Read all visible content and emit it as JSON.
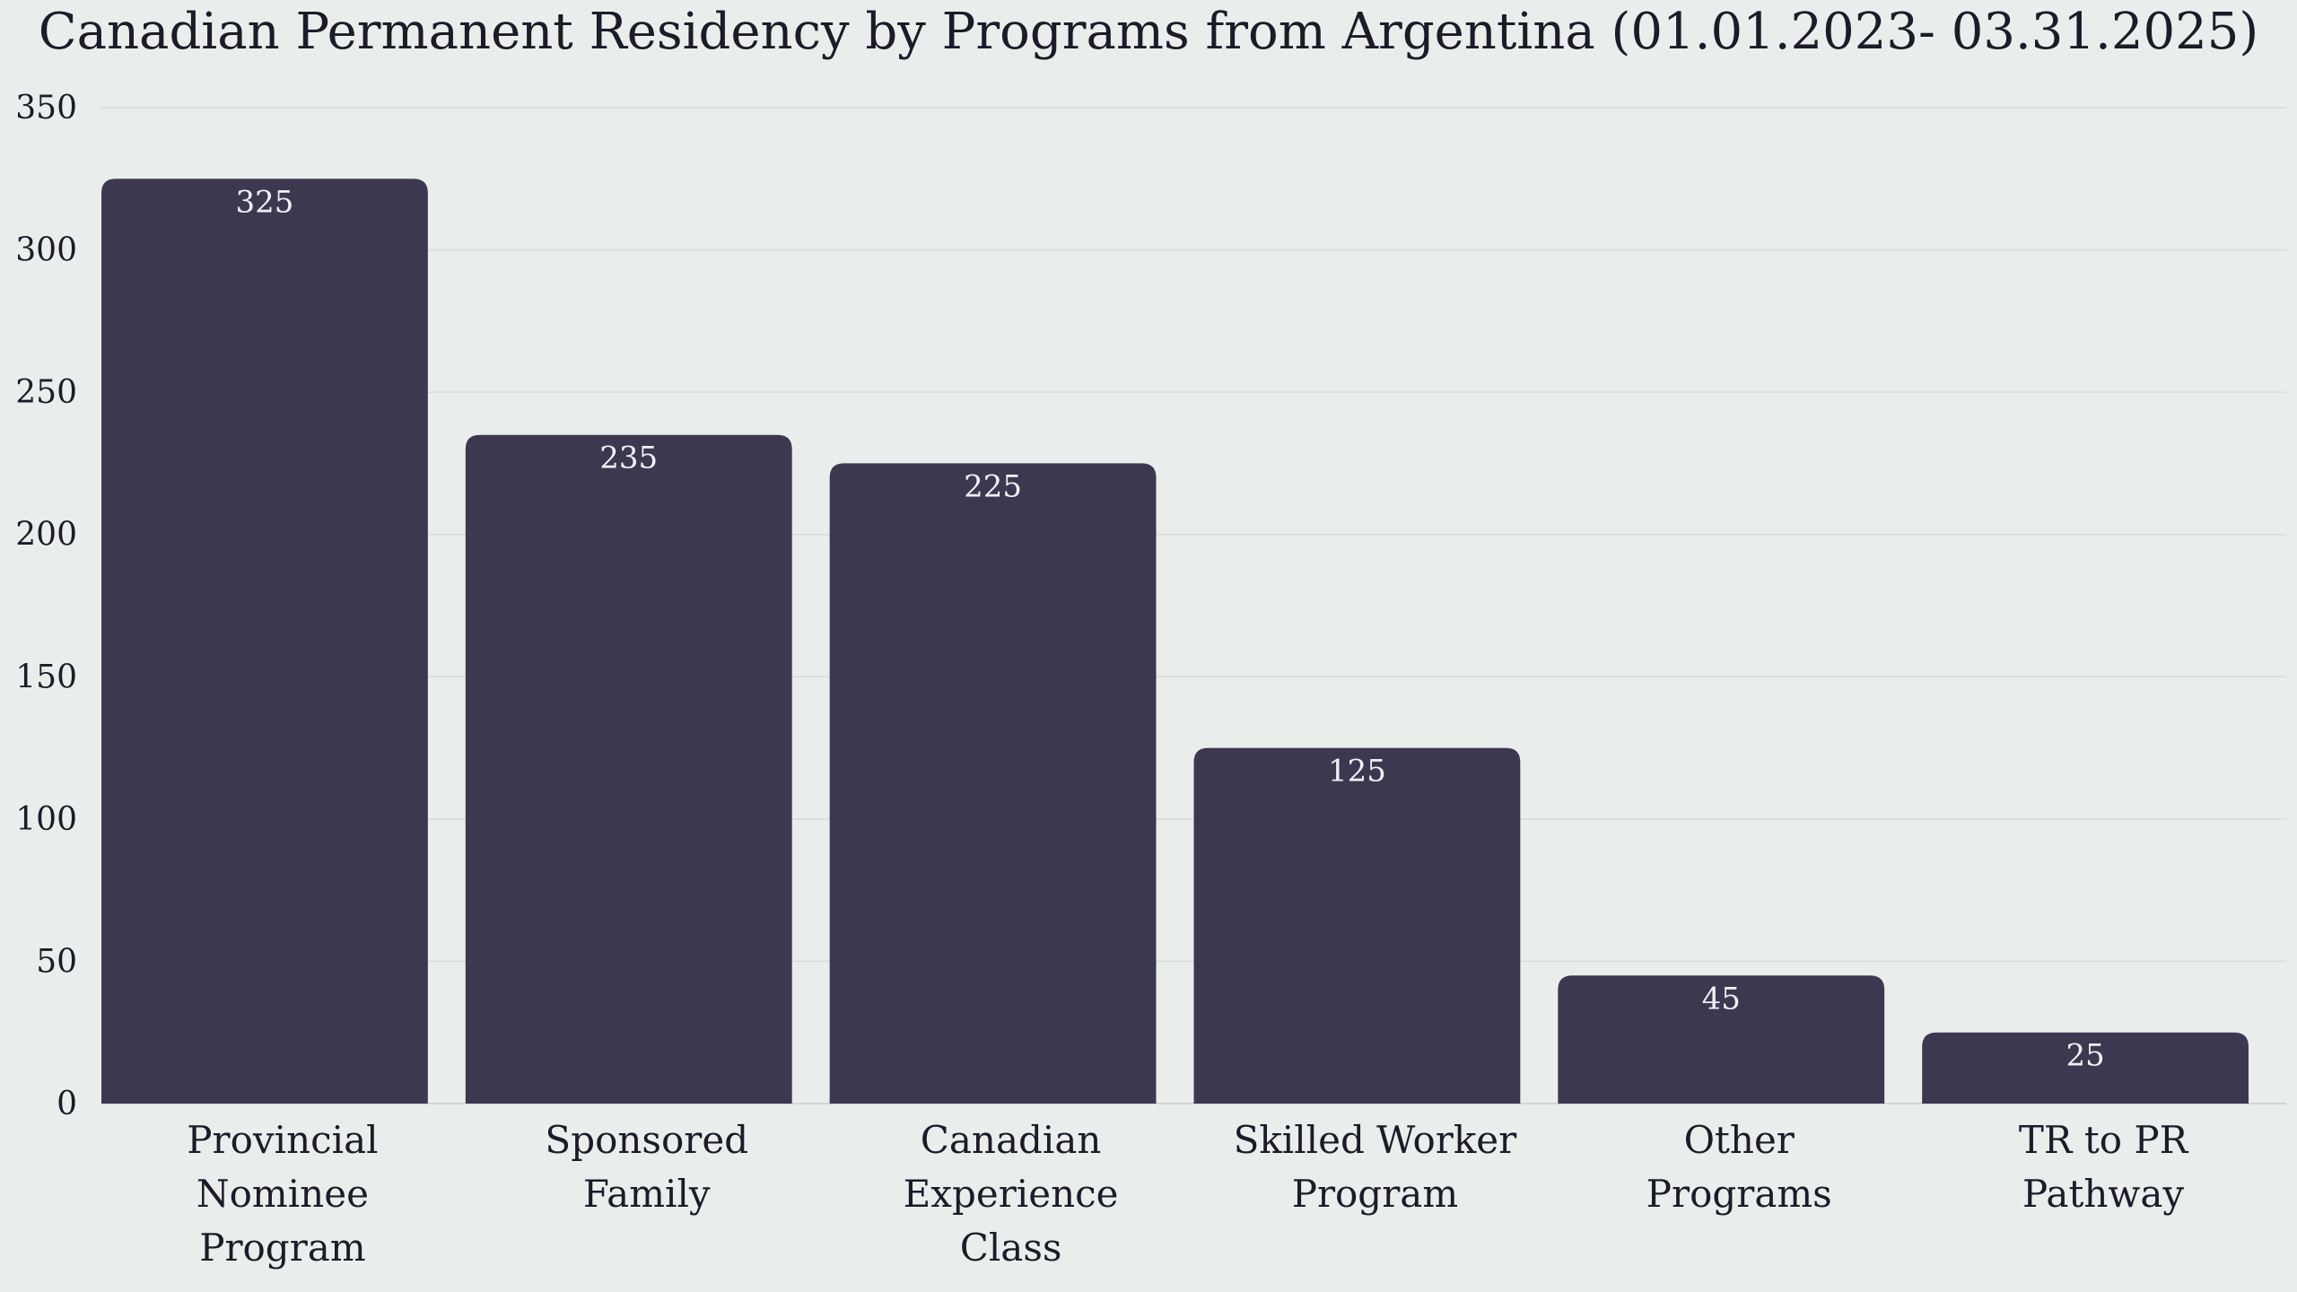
{
  "chart_data": {
    "type": "bar",
    "title": "Canadian Permanent Residency by Programs from Argentina (01.01.2023- 03.31.2025)",
    "xlabel": "",
    "ylabel": "",
    "categories": [
      [
        "Provincial",
        "Nominee",
        "Program"
      ],
      [
        "Sponsored",
        "Family"
      ],
      [
        "Canadian",
        "Experience",
        "Class"
      ],
      [
        "Skilled Worker",
        "Program"
      ],
      [
        "Other",
        "Programs"
      ],
      [
        "TR to PR",
        "Pathway"
      ]
    ],
    "values": [
      325,
      235,
      225,
      125,
      45,
      25
    ],
    "value_labels": [
      "325",
      "235",
      "225",
      "125",
      "45",
      "25"
    ],
    "ylim": [
      0,
      350
    ],
    "yticks": [
      0,
      50,
      100,
      150,
      200,
      250,
      300,
      350
    ],
    "ytick_labels": [
      "0",
      "50",
      "100",
      "150",
      "200",
      "250",
      "300",
      "350"
    ],
    "grid": true,
    "legend": "none",
    "colors": {
      "bar": "#3d3850",
      "background": "#e9eeec",
      "value_text": "#f1f0f6",
      "text": "#1d1b28"
    }
  }
}
